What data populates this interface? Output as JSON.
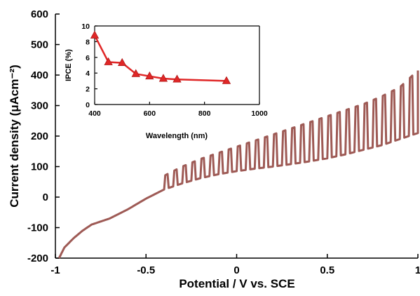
{
  "chart_data": [
    {
      "type": "line",
      "xlabel": "Potential / V vs. SCE",
      "ylabel": "Current density (μAcm⁻²)",
      "xlim": [
        -1,
        1
      ],
      "ylim": [
        -200,
        600
      ],
      "x_ticks": [
        "-1",
        "-0.5",
        "0",
        "0.5",
        "1"
      ],
      "y_ticks": [
        "-200",
        "-100",
        "0",
        "100",
        "200",
        "300",
        "400",
        "500",
        "600"
      ],
      "grid": false,
      "series": [
        {
          "color": "#9e5a55",
          "style": "chopped-light photocurrent",
          "dark_curve": {
            "x": [
              -0.98,
              -0.95,
              -0.9,
              -0.85,
              -0.8,
              -0.7,
              -0.6,
              -0.5,
              -0.4,
              -0.3,
              -0.2,
              -0.1,
              0.0,
              0.1,
              0.2,
              0.3,
              0.4,
              0.5,
              0.6,
              0.7,
              0.8,
              0.9,
              1.0
            ],
            "y": [
              -200,
              -165,
              -135,
              -110,
              -90,
              -70,
              -40,
              -5,
              25,
              45,
              62,
              75,
              85,
              93,
              100,
              108,
              117,
              127,
              140,
              155,
              170,
              190,
              210
            ]
          },
          "light_curve": {
            "x": [
              -0.45,
              -0.4,
              -0.3,
              -0.2,
              -0.1,
              0.0,
              0.1,
              0.2,
              0.3,
              0.4,
              0.5,
              0.6,
              0.7,
              0.8,
              0.9,
              1.0
            ],
            "y": [
              55,
              70,
              100,
              125,
              145,
              165,
              185,
              205,
              225,
              245,
              265,
              285,
              305,
              330,
              360,
              415
            ]
          },
          "pulse_start_x": -0.4,
          "pulse_period_x": 0.05
        }
      ]
    },
    {
      "type": "line",
      "xlabel": "Wavelength (nm)",
      "ylabel": "IPCE (%)",
      "xlim": [
        400,
        1000
      ],
      "ylim": [
        0,
        10
      ],
      "x_ticks": [
        "400",
        "600",
        "800",
        "1000"
      ],
      "y_ticks": [
        "0",
        "2",
        "4",
        "6",
        "8",
        "10"
      ],
      "grid": false,
      "series": [
        {
          "color": "#e02727",
          "marker": "triangle",
          "x": [
            400,
            450,
            500,
            550,
            600,
            650,
            700,
            880
          ],
          "y": [
            8.8,
            5.4,
            5.3,
            3.9,
            3.6,
            3.3,
            3.2,
            3.0
          ]
        }
      ]
    }
  ]
}
